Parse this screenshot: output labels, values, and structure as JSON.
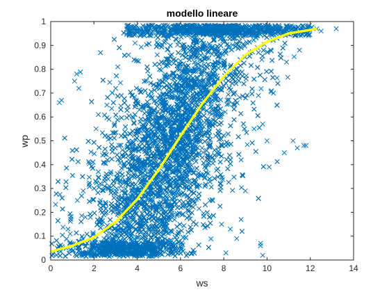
{
  "chart_data": {
    "type": "scatter",
    "title": "modello lineare",
    "xlabel": "ws",
    "ylabel": "wp",
    "xlim": [
      0,
      14
    ],
    "ylim": [
      0,
      1
    ],
    "xticks": [
      "0",
      "2",
      "4",
      "6",
      "8",
      "10",
      "12",
      "14"
    ],
    "yticks": [
      "0",
      "0.1",
      "0.2",
      "0.3",
      "0.4",
      "0.5",
      "0.6",
      "0.7",
      "0.8",
      "0.9",
      "1"
    ],
    "grid": false,
    "legend": "none",
    "series": [
      {
        "type": "scatter",
        "marker": "x",
        "color": "#0072BD",
        "description_points": [
          [
            0.4,
            0.66
          ],
          [
            0.5,
            0.67
          ],
          [
            1.1,
            0.75
          ],
          [
            1.2,
            0.78
          ],
          [
            1.3,
            0.72
          ],
          [
            0.3,
            0.05
          ],
          [
            0.8,
            0.13
          ],
          [
            0.9,
            0.11
          ],
          [
            1.3,
            0.04
          ],
          [
            1.6,
            0.18
          ],
          [
            1.5,
            0.29
          ],
          [
            1.7,
            0.03
          ],
          [
            2.0,
            0.02
          ],
          [
            2.2,
            0.37
          ],
          [
            2.3,
            0.25
          ],
          [
            2.1,
            0.55
          ],
          [
            2.2,
            0.61
          ],
          [
            2.4,
            0.44
          ],
          [
            2.6,
            0.65
          ],
          [
            2.7,
            0.59
          ],
          [
            2.9,
            0.33
          ],
          [
            3.0,
            0.72
          ],
          [
            3.1,
            0.81
          ],
          [
            3.2,
            0.12
          ],
          [
            3.4,
            0.52
          ],
          [
            3.6,
            0.86
          ],
          [
            3.8,
            0.27
          ],
          [
            3.9,
            0.91
          ],
          [
            4.1,
            0.63
          ],
          [
            4.3,
            0.95
          ],
          [
            4.5,
            0.08
          ],
          [
            4.6,
            0.41
          ],
          [
            4.8,
            0.97
          ],
          [
            5.0,
            0.56
          ],
          [
            5.2,
            0.2
          ],
          [
            5.5,
            0.98
          ],
          [
            5.8,
            0.73
          ],
          [
            6.1,
            0.35
          ],
          [
            6.4,
            0.98
          ],
          [
            6.7,
            0.88
          ],
          [
            7.0,
            0.47
          ],
          [
            7.3,
            0.98
          ],
          [
            7.6,
            0.62
          ],
          [
            7.9,
            0.15
          ],
          [
            8.2,
            0.97
          ],
          [
            8.5,
            0.78
          ],
          [
            8.8,
            0.42
          ],
          [
            9.1,
            0.96
          ],
          [
            9.4,
            0.55
          ],
          [
            9.7,
            0.06
          ],
          [
            10.0,
            0.97
          ],
          [
            10.3,
            0.7
          ],
          [
            10.6,
            0.97
          ],
          [
            10.9,
            0.83
          ],
          [
            11.2,
            0.97
          ],
          [
            11.5,
            0.88
          ],
          [
            11.9,
            0.97
          ],
          [
            12.3,
            0.97
          ],
          [
            12.5,
            0.96
          ],
          [
            13.2,
            0.97
          ],
          [
            11.7,
            0.48
          ],
          [
            11.8,
            0.48
          ],
          [
            11.2,
            0.5
          ],
          [
            11.4,
            0.47
          ],
          [
            10.8,
            0.45
          ],
          [
            10.2,
            0.71
          ],
          [
            10.0,
            0.5
          ],
          [
            10.1,
            0.39
          ],
          [
            9.6,
            0.69
          ],
          [
            9.8,
            0.57
          ],
          [
            9.8,
            0.02
          ],
          [
            9.7,
            0.07
          ],
          [
            9.0,
            0.29
          ],
          [
            8.8,
            0.17
          ],
          [
            8.6,
            0.09
          ],
          [
            8.3,
            0.13
          ],
          [
            8.1,
            0.03
          ]
        ]
      },
      {
        "type": "line",
        "color": "#FFFF00",
        "function": "logistic",
        "x": [
          0,
          12.3
        ],
        "points": [
          [
            0.0,
            0.035
          ],
          [
            1.0,
            0.06
          ],
          [
            2.0,
            0.095
          ],
          [
            3.0,
            0.16
          ],
          [
            4.0,
            0.255
          ],
          [
            5.0,
            0.38
          ],
          [
            6.0,
            0.52
          ],
          [
            7.0,
            0.655
          ],
          [
            8.0,
            0.77
          ],
          [
            9.0,
            0.86
          ],
          [
            10.0,
            0.915
          ],
          [
            11.0,
            0.95
          ],
          [
            12.0,
            0.965
          ],
          [
            12.3,
            0.97
          ]
        ]
      }
    ]
  }
}
